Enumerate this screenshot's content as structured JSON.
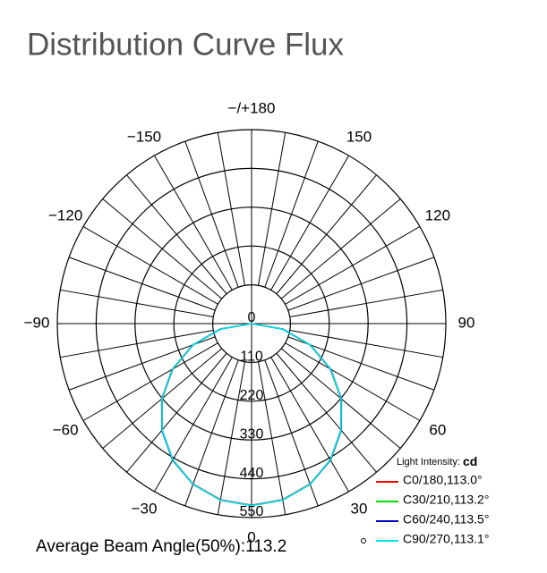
{
  "chart_data": {
    "type": "polar",
    "title": "Distribution Curve Flux",
    "angles": [
      -90,
      -80,
      -70,
      -60,
      -50,
      -40,
      -30,
      -20,
      -10,
      0,
      10,
      20,
      30,
      40,
      50,
      60,
      70,
      80,
      90
    ],
    "series": [
      {
        "name": "C0/180,113.0°",
        "color": "#ff0000",
        "values": [
          0,
          88,
          175,
          257,
          330,
          394,
          446,
          484,
          507,
          515,
          507,
          484,
          446,
          394,
          330,
          257,
          175,
          88,
          0
        ]
      },
      {
        "name": "C30/210,113.2°",
        "color": "#00e000",
        "values": [
          0,
          89,
          176,
          258,
          331,
          395,
          447,
          485,
          508,
          516,
          508,
          485,
          447,
          395,
          331,
          258,
          176,
          89,
          0
        ]
      },
      {
        "name": "C60/240,113.5°",
        "color": "#0000c0",
        "values": [
          0,
          90,
          177,
          259,
          332,
          395,
          447,
          485,
          508,
          516,
          508,
          485,
          447,
          395,
          332,
          259,
          177,
          90,
          0
        ]
      },
      {
        "name": "C90/270,113.1°",
        "color": "#00e5e5",
        "values": [
          0,
          88,
          176,
          258,
          331,
          394,
          446,
          485,
          508,
          516,
          508,
          485,
          446,
          394,
          331,
          258,
          176,
          88,
          0
        ]
      }
    ],
    "rlim": [
      0,
      550
    ],
    "rticks": [
      0,
      110,
      220,
      330,
      440,
      550
    ],
    "angle_ticks": [
      {
        "value": 180,
        "label": "−/+180"
      },
      {
        "value": 150,
        "label": "150"
      },
      {
        "value": -150,
        "label": "−150"
      },
      {
        "value": 120,
        "label": "120"
      },
      {
        "value": -120,
        "label": "−120"
      },
      {
        "value": 90,
        "label": "90"
      },
      {
        "value": -90,
        "label": "−90"
      },
      {
        "value": 60,
        "label": "60"
      },
      {
        "value": -60,
        "label": "−60"
      },
      {
        "value": 30,
        "label": "30"
      },
      {
        "value": -30,
        "label": "−30"
      },
      {
        "value": 0,
        "label": "0"
      }
    ],
    "spoke_step": 10,
    "legend_title": "Light Intensity:",
    "legend_unit": "cd",
    "footer": "Average Beam Angle(50%):113.2"
  }
}
